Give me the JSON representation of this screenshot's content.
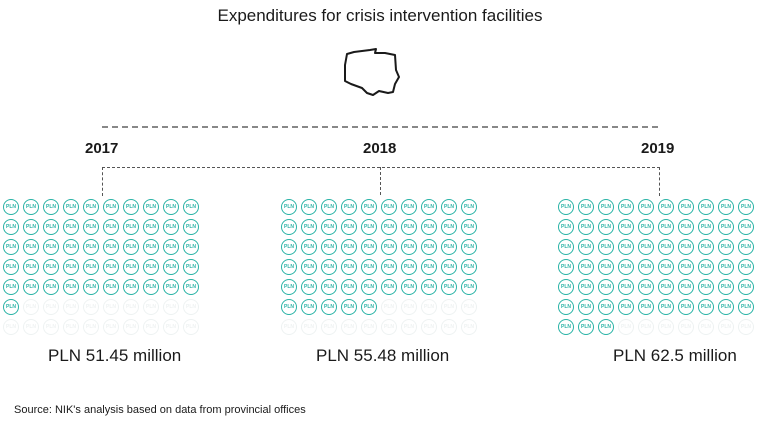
{
  "title": "Expenditures for crisis intervention facilities",
  "map_icon": "poland-outline-icon",
  "coin_label": "PLN",
  "colors": {
    "coin": "#2ab3a6",
    "coin_faded": "#eef2f2"
  },
  "years": [
    {
      "label": "2017",
      "amount": "PLN 51.45 million",
      "filled": 51,
      "total": 70
    },
    {
      "label": "2018",
      "amount": "PLN 55.48 million",
      "filled": 55,
      "total": 70
    },
    {
      "label": "2019",
      "amount": "PLN 62.5 million",
      "filled": 63,
      "total": 70
    }
  ],
  "source": "Source: NIK's analysis based on data from provincial offices",
  "chart_data": {
    "type": "pictogram",
    "title": "Expenditures for crisis intervention facilities",
    "categories": [
      "2017",
      "2018",
      "2019"
    ],
    "values": [
      51.45,
      55.48,
      62.5
    ],
    "unit": "PLN million",
    "icon_counts": [
      51,
      55,
      63
    ],
    "labels": [
      "PLN 51.45 million",
      "PLN 55.48 million",
      "PLN 62.5 million"
    ],
    "source": "Source: NIK's analysis based on data from provincial offices"
  }
}
